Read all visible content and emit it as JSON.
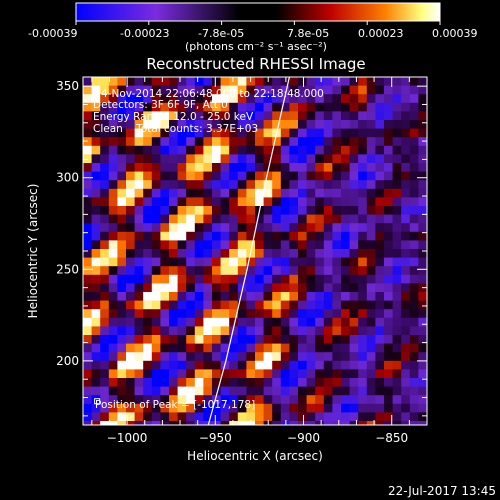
{
  "colorbar": {
    "ticks": [
      "-0.00039",
      "-0.00023",
      "-7.8e-05",
      "7.8e-05",
      "0.00023",
      "0.00039"
    ],
    "unit_label": "(photons cm⁻² s⁻¹ asec⁻²)",
    "colors": [
      "#0000ff",
      "#8a2be2",
      "#000000",
      "#c00000",
      "#ff8000",
      "#ffff80",
      "#ffffff"
    ]
  },
  "chart_data": {
    "type": "heatmap",
    "title": "Reconstructed RHESSI Image",
    "xlabel": "Heliocentric X (arcsec)",
    "ylabel": "Heliocentric Y (arcsec)",
    "xlim": [
      -1025,
      -830
    ],
    "ylim": [
      165,
      355
    ],
    "x_ticks": [
      -1000,
      -950,
      -900,
      -850
    ],
    "x_tick_labels": [
      "−1000",
      "−950",
      "−900",
      "−850"
    ],
    "y_ticks": [
      200,
      250,
      300,
      350
    ],
    "y_tick_labels": [
      "200",
      "250",
      "300",
      "350"
    ],
    "limb_line": [
      [
        -954,
        165
      ],
      [
        -944,
        200
      ],
      [
        -932,
        250
      ],
      [
        -921,
        300
      ],
      [
        -908,
        355
      ]
    ],
    "info_lines": [
      "4-Nov-2014 22:06:48.000 to 22:18:48.000",
      "Detectors: 3F 6F 9F, Att 0",
      "Energy Range: 12.0 - 25.0 keV",
      "Clean    Total counts: 3.37E+03"
    ],
    "peak_text": "Position of Peak = [-1017,178]",
    "peak": [
      -1017,
      178
    ],
    "grid": false,
    "legend": "none"
  },
  "footer": {
    "timestamp": "22-Jul-2017 13:45"
  }
}
